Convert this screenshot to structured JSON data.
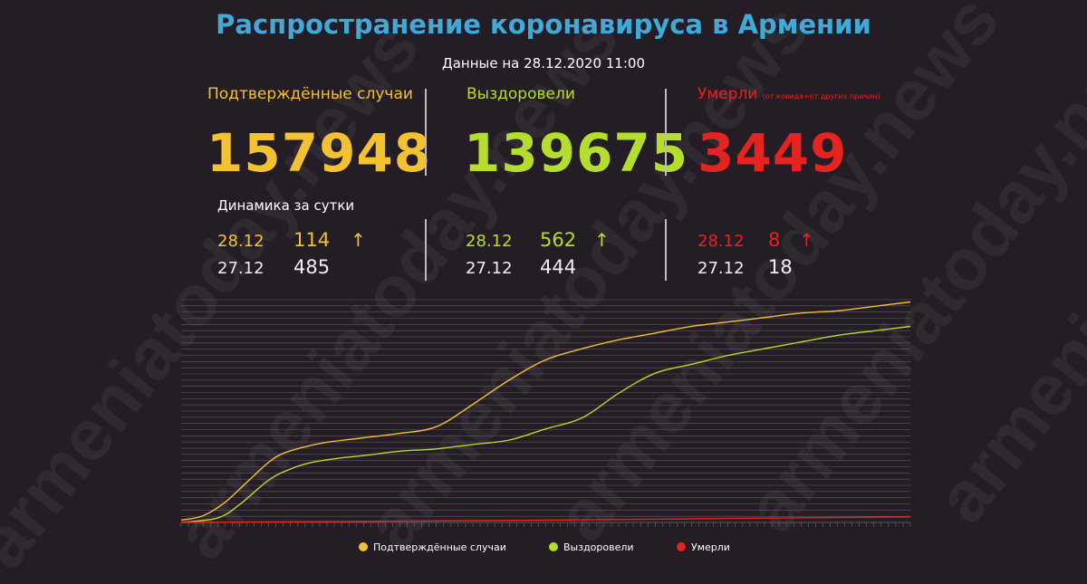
{
  "watermark": "armeniatoday.news",
  "header": {
    "title": "Распространение коронавируса в Армении",
    "subtitle": "Данные на 28.12.2020 11:00"
  },
  "stats": {
    "confirmed": {
      "label": "Подтверждённые случаи",
      "value": "157948",
      "color": "#f2c232"
    },
    "recovered": {
      "label": "Выздоровели",
      "value": "139675",
      "color": "#b4dd2d"
    },
    "deaths": {
      "label": "Умерли",
      "note": "(от ковида+от других причин)",
      "value": "3449",
      "color": "#e5231f"
    }
  },
  "dynamics": {
    "title": "Динамика за сутки",
    "confirmed": {
      "today_date": "28.12",
      "today_value": "114",
      "prev_date": "27.12",
      "prev_value": "485",
      "trend": "up-arrow-icon"
    },
    "recovered": {
      "today_date": "28.12",
      "today_value": "562",
      "prev_date": "27.12",
      "prev_value": "444",
      "trend": "up-arrow-icon"
    },
    "deaths": {
      "today_date": "28.12",
      "today_value": "8",
      "prev_date": "27.12",
      "prev_value": "18",
      "trend": "up-arrow-icon"
    }
  },
  "chart_data": {
    "type": "line",
    "grid": true,
    "legend_position": "bottom",
    "x_range": [
      0,
      100
    ],
    "y_range": [
      0,
      100
    ],
    "series": [
      {
        "name": "Подтверждённые случаи",
        "color": "#f2c232",
        "x": [
          0,
          3,
          6,
          9,
          12,
          14,
          17,
          20,
          25,
          30,
          35,
          40,
          45,
          50,
          55,
          60,
          65,
          70,
          75,
          80,
          85,
          90,
          95,
          100
        ],
        "y": [
          1,
          3,
          9,
          18,
          27,
          31,
          34,
          36,
          38,
          40,
          43,
          53,
          64,
          73,
          78,
          82,
          85,
          88,
          90,
          92,
          94,
          95,
          97,
          99
        ]
      },
      {
        "name": "Выздоровели",
        "color": "#b4dd2d",
        "x": [
          0,
          5,
          8,
          12,
          15,
          18,
          22,
          25,
          30,
          35,
          40,
          45,
          50,
          55,
          60,
          65,
          70,
          75,
          80,
          85,
          90,
          95,
          100
        ],
        "y": [
          0,
          2,
          8,
          19,
          24,
          27,
          29,
          30,
          32,
          33,
          35,
          37,
          42,
          47,
          58,
          67,
          71,
          75,
          78,
          81,
          84,
          86,
          88
        ]
      },
      {
        "name": "Умерли",
        "color": "#e5231f",
        "x": [
          0,
          25,
          50,
          75,
          100
        ],
        "y": [
          0,
          0.5,
          1,
          1.8,
          2.5
        ]
      }
    ]
  }
}
